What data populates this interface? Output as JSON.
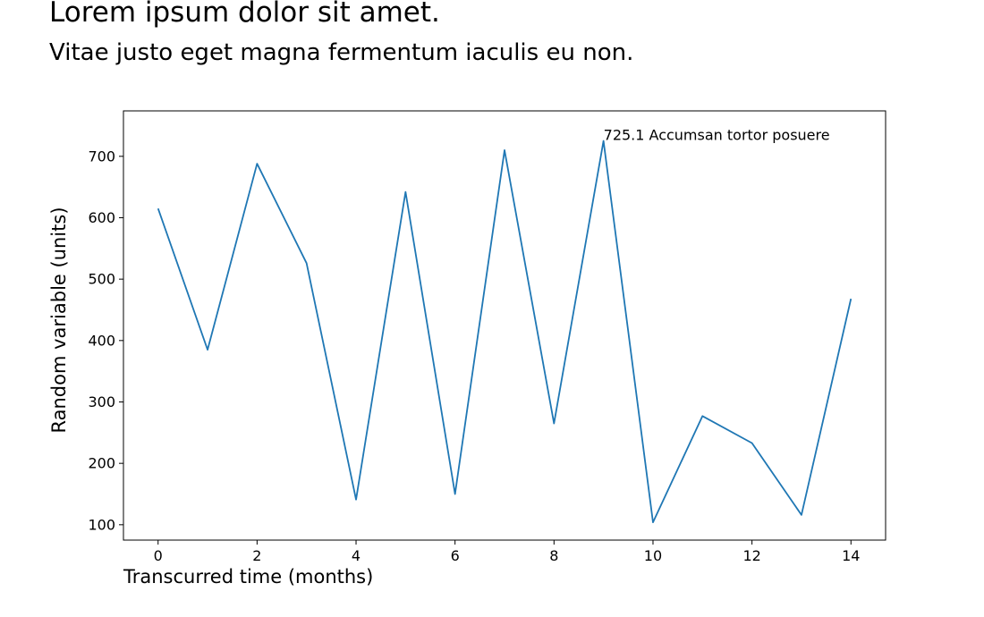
{
  "title": "Lorem ipsum dolor sit amet.",
  "subtitle": "Vitae justo eget magna fermentum iaculis eu non.",
  "chart_data": {
    "type": "line",
    "xlabel": "Transcurred time (months)",
    "ylabel": "Random variable (units)",
    "x": [
      0,
      1,
      2,
      3,
      4,
      5,
      6,
      7,
      8,
      9,
      10,
      11,
      12,
      13,
      14
    ],
    "series": [
      {
        "values": [
          615,
          385,
          688,
          526,
          141,
          642,
          150,
          710,
          265,
          725.1,
          104,
          277,
          233,
          116,
          468
        ],
        "color": "#1f77b4"
      }
    ],
    "xlim": [
      -0.7,
      14.7
    ],
    "ylim": [
      75,
      774
    ],
    "xticks": [
      0,
      2,
      4,
      6,
      8,
      10,
      12,
      14
    ],
    "yticks": [
      100,
      200,
      300,
      400,
      500,
      600,
      700
    ],
    "grid": false,
    "annotation": {
      "x": 9,
      "y": 725.1,
      "text": "725.1 Accumsan tortor posuere"
    }
  }
}
